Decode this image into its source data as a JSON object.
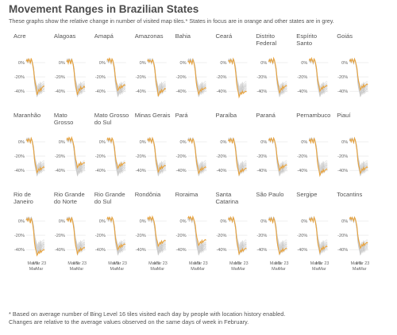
{
  "title": "Movement Ranges in Brazilian States",
  "subtitle": "These graphs show the relative change in number of visited map tiles.* States in focus are in orange and other states are in grey.",
  "footnote_lines": [
    "* Based on average number of Bing Level 16 tiles visited each day by people with location history enabled.",
    "Changes are relative to the average values observed on the same days of week in February."
  ],
  "colors": {
    "focus": "#e8a33d",
    "others": "#c9c9c9",
    "grid": "#e6e6e6",
    "text": "#555555"
  },
  "chart_data": {
    "type": "line",
    "layout": "small-multiples",
    "ylabels": [
      "0%",
      "-20%",
      "-40%"
    ],
    "yvalues": [
      0,
      -20,
      -40
    ],
    "ylim": [
      -52,
      10
    ],
    "xlim": [
      0,
      23
    ],
    "x_ticks": [
      {
        "pos": 8,
        "line1": "Mar 9",
        "line2": "Mar"
      },
      {
        "pos": 16,
        "line1": "Mar 23",
        "line2": "Mar"
      }
    ],
    "panels": [
      {
        "name": "Acre",
        "values": [
          2,
          4,
          1,
          5,
          3,
          -1,
          6,
          2,
          -4,
          -10,
          -22,
          -30,
          -34,
          -45,
          -42,
          -38,
          -40,
          -36,
          -39,
          -35,
          -34,
          -33,
          -33
        ]
      },
      {
        "name": "Alagoas",
        "values": [
          1,
          3,
          -1,
          4,
          2,
          -2,
          5,
          1,
          -3,
          -12,
          -25,
          -33,
          -38,
          -45,
          -41,
          -37,
          -39,
          -34,
          -37,
          -36,
          -35,
          -33,
          -35
        ]
      },
      {
        "name": "Amapá",
        "values": [
          4,
          5,
          2,
          6,
          4,
          0,
          5,
          3,
          -2,
          -8,
          -20,
          -28,
          -31,
          -39,
          -37,
          -34,
          -36,
          -32,
          -35,
          -33,
          -32,
          -31,
          -32
        ]
      },
      {
        "name": "Amazonas",
        "values": [
          2,
          4,
          1,
          3,
          2,
          0,
          4,
          2,
          -3,
          -10,
          -23,
          -31,
          -36,
          -47,
          -44,
          -40,
          -42,
          -38,
          -41,
          -39,
          -38,
          -36,
          -37
        ]
      },
      {
        "name": "Bahia",
        "values": [
          1,
          2,
          -1,
          3,
          1,
          -2,
          4,
          1,
          -4,
          -12,
          -26,
          -34,
          -38,
          -44,
          -41,
          -38,
          -40,
          -36,
          -38,
          -37,
          -36,
          -35,
          -36
        ]
      },
      {
        "name": "Ceará",
        "values": [
          2,
          3,
          0,
          4,
          2,
          -1,
          5,
          2,
          -5,
          -14,
          -28,
          -36,
          -41,
          -48,
          -45,
          -42,
          -44,
          -40,
          -43,
          -42,
          -41,
          -40,
          -41
        ]
      },
      {
        "name": "Distrito\nFederal",
        "values": [
          1,
          4,
          1,
          5,
          3,
          -1,
          6,
          3,
          -3,
          -9,
          -22,
          -30,
          -34,
          -42,
          -40,
          -36,
          -38,
          -33,
          -36,
          -34,
          -33,
          -32,
          -33
        ]
      },
      {
        "name": "Espírito\nSanto",
        "values": [
          3,
          5,
          2,
          6,
          3,
          0,
          5,
          3,
          -2,
          -9,
          -21,
          -29,
          -33,
          -40,
          -38,
          -35,
          -37,
          -33,
          -35,
          -34,
          -33,
          -32,
          -33
        ]
      },
      {
        "name": "Goiás",
        "values": [
          2,
          4,
          1,
          5,
          3,
          0,
          5,
          2,
          -3,
          -8,
          -19,
          -27,
          -31,
          -38,
          -36,
          -33,
          -35,
          -31,
          -34,
          -32,
          -31,
          -30,
          -31
        ]
      },
      {
        "name": "Maranhão",
        "values": [
          2,
          3,
          0,
          4,
          2,
          -1,
          5,
          2,
          -4,
          -11,
          -24,
          -32,
          -36,
          -43,
          -41,
          -38,
          -40,
          -36,
          -39,
          -37,
          -36,
          -35,
          -36
        ]
      },
      {
        "name": "Mato\nGrosso",
        "values": [
          3,
          5,
          2,
          6,
          4,
          1,
          6,
          3,
          -2,
          -7,
          -18,
          -25,
          -29,
          -36,
          -34,
          -31,
          -33,
          -29,
          -32,
          -31,
          -30,
          -29,
          -30
        ]
      },
      {
        "name": "Mato Grosso\ndo Sul",
        "values": [
          3,
          5,
          2,
          5,
          3,
          0,
          5,
          3,
          -2,
          -8,
          -20,
          -28,
          -31,
          -37,
          -35,
          -32,
          -34,
          -30,
          -33,
          -31,
          -30,
          -29,
          -30
        ]
      },
      {
        "name": "Minas Gerais",
        "values": [
          2,
          4,
          1,
          5,
          2,
          -1,
          5,
          2,
          -3,
          -10,
          -23,
          -31,
          -35,
          -42,
          -40,
          -36,
          -38,
          -34,
          -37,
          -35,
          -34,
          -33,
          -34
        ]
      },
      {
        "name": "Pará",
        "values": [
          2,
          3,
          1,
          4,
          2,
          -1,
          4,
          2,
          -4,
          -11,
          -24,
          -32,
          -36,
          -44,
          -42,
          -38,
          -40,
          -36,
          -39,
          -37,
          -36,
          -35,
          -36
        ]
      },
      {
        "name": "Paraíba",
        "values": [
          1,
          3,
          0,
          4,
          2,
          -2,
          5,
          1,
          -5,
          -13,
          -27,
          -35,
          -39,
          -46,
          -43,
          -40,
          -42,
          -38,
          -41,
          -39,
          -38,
          -37,
          -38
        ]
      },
      {
        "name": "Paraná",
        "values": [
          2,
          4,
          1,
          5,
          3,
          0,
          5,
          2,
          -3,
          -9,
          -21,
          -29,
          -33,
          -40,
          -38,
          -35,
          -37,
          -33,
          -36,
          -34,
          -33,
          -32,
          -33
        ]
      },
      {
        "name": "Pernambuco",
        "values": [
          1,
          3,
          -1,
          4,
          2,
          -2,
          5,
          1,
          -5,
          -13,
          -27,
          -35,
          -40,
          -47,
          -44,
          -41,
          -43,
          -39,
          -42,
          -40,
          -39,
          -38,
          -39
        ]
      },
      {
        "name": "Piauí",
        "values": [
          2,
          3,
          0,
          4,
          2,
          -1,
          5,
          2,
          -4,
          -12,
          -25,
          -33,
          -37,
          -44,
          -42,
          -38,
          -40,
          -36,
          -39,
          -37,
          -36,
          -35,
          -36
        ]
      },
      {
        "name": "Rio de\nJaneiro",
        "values": [
          1,
          3,
          0,
          4,
          1,
          -3,
          4,
          0,
          -6,
          -15,
          -30,
          -38,
          -42,
          -48,
          -46,
          -43,
          -45,
          -41,
          -44,
          -42,
          -41,
          -40,
          -41
        ]
      },
      {
        "name": "Rio Grande\ndo Norte",
        "values": [
          1,
          3,
          0,
          4,
          2,
          -2,
          5,
          1,
          -5,
          -13,
          -27,
          -35,
          -39,
          -46,
          -43,
          -40,
          -42,
          -38,
          -41,
          -39,
          -38,
          -37,
          -38
        ]
      },
      {
        "name": "Rio Grande\ndo Sul",
        "values": [
          3,
          5,
          2,
          5,
          3,
          0,
          5,
          3,
          -2,
          -9,
          -22,
          -30,
          -34,
          -40,
          -38,
          -35,
          -37,
          -33,
          -36,
          -34,
          -33,
          -32,
          -33
        ]
      },
      {
        "name": "Rondônia",
        "values": [
          3,
          5,
          2,
          6,
          4,
          1,
          6,
          3,
          -1,
          -7,
          -18,
          -25,
          -29,
          -35,
          -33,
          -30,
          -32,
          -28,
          -31,
          -29,
          -28,
          -27,
          -28
        ]
      },
      {
        "name": "Roraima",
        "values": [
          4,
          6,
          3,
          6,
          4,
          1,
          6,
          3,
          -1,
          -6,
          -17,
          -24,
          -28,
          -34,
          -32,
          -29,
          -31,
          -27,
          -30,
          -28,
          -27,
          -26,
          -27
        ]
      },
      {
        "name": "Santa\nCatarina",
        "values": [
          2,
          4,
          1,
          5,
          2,
          -1,
          5,
          2,
          -4,
          -11,
          -25,
          -33,
          -38,
          -46,
          -44,
          -41,
          -43,
          -39,
          -42,
          -40,
          -39,
          -38,
          -39
        ]
      },
      {
        "name": "São Paulo",
        "values": [
          1,
          3,
          0,
          4,
          1,
          -2,
          4,
          1,
          -5,
          -13,
          -27,
          -35,
          -40,
          -46,
          -44,
          -41,
          -43,
          -39,
          -42,
          -40,
          -39,
          -38,
          -39
        ]
      },
      {
        "name": "Sergipe",
        "values": [
          2,
          3,
          0,
          4,
          2,
          -1,
          5,
          2,
          -4,
          -12,
          -25,
          -33,
          -37,
          -44,
          -41,
          -38,
          -40,
          -36,
          -39,
          -37,
          -36,
          -35,
          -36
        ]
      },
      {
        "name": "Tocantins",
        "values": [
          3,
          5,
          2,
          5,
          3,
          0,
          5,
          3,
          -2,
          -8,
          -20,
          -28,
          -32,
          -38,
          -36,
          -33,
          -35,
          -31,
          -34,
          -32,
          -31,
          -30,
          -31
        ]
      }
    ]
  }
}
